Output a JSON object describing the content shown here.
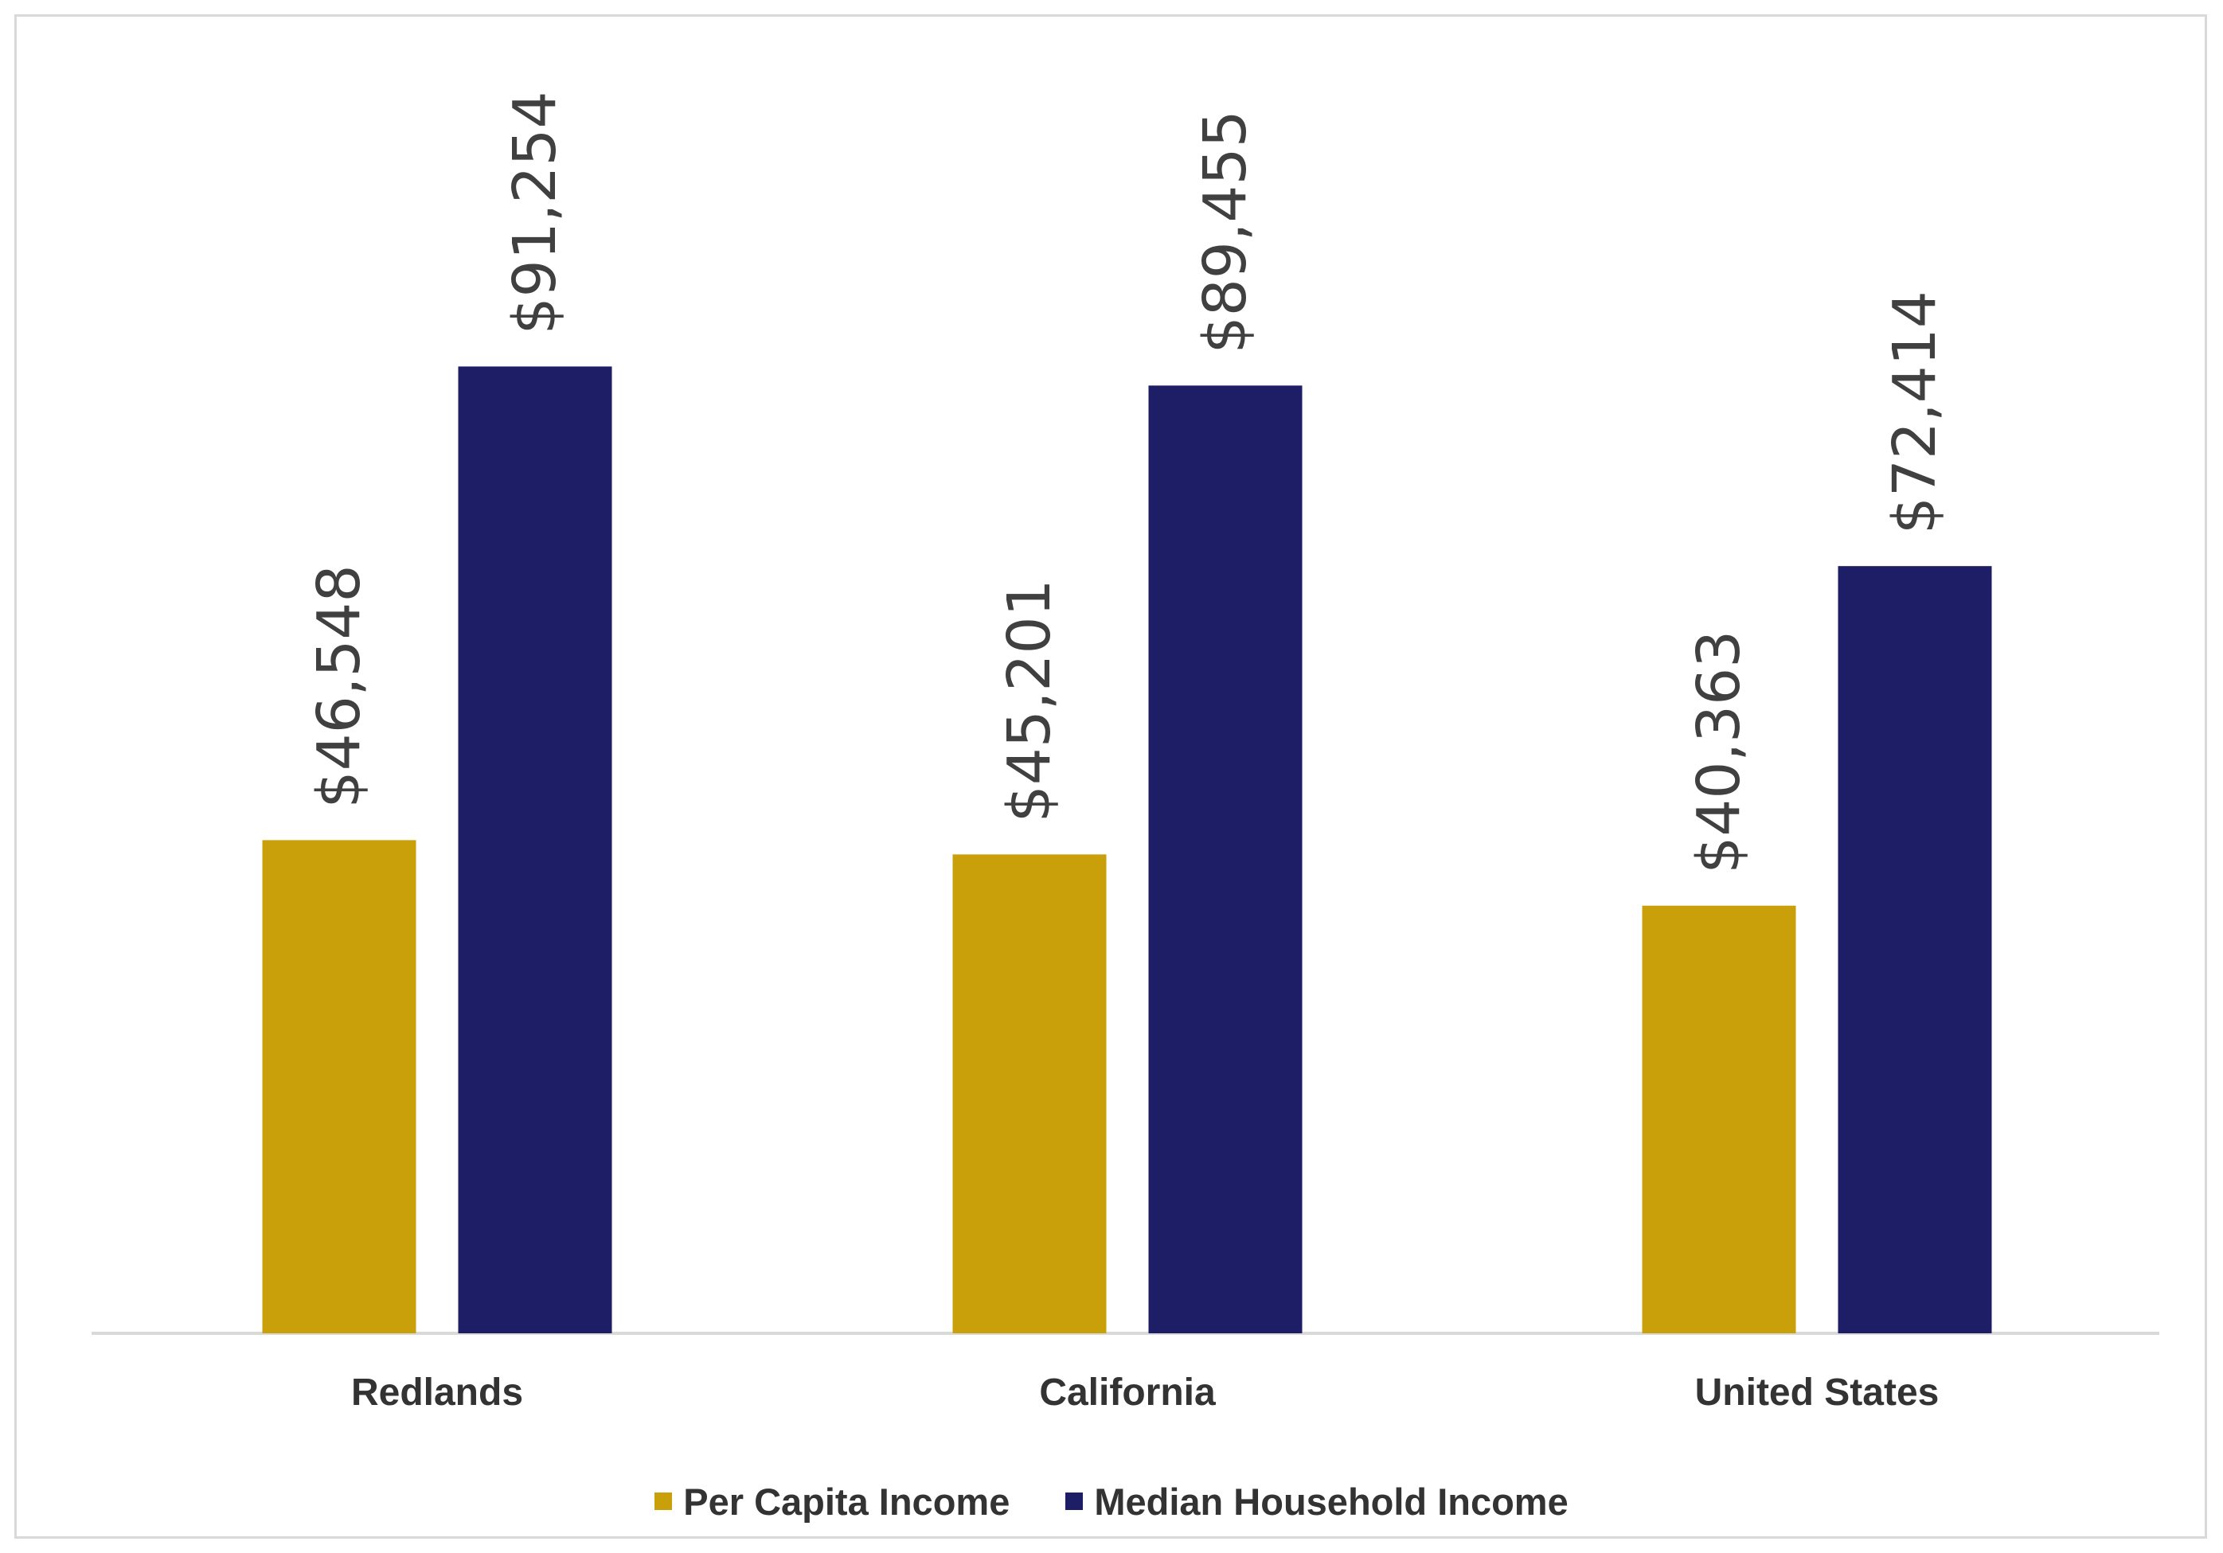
{
  "chart_data": {
    "type": "bar",
    "categories": [
      "Redlands",
      "California",
      "United States"
    ],
    "series": [
      {
        "name": "Per Capita Income",
        "values": [
          46548,
          45201,
          40363
        ],
        "labels": [
          "$46,548",
          "$45,201",
          "$40,363"
        ],
        "color": "#c9a009"
      },
      {
        "name": "Median Household Income",
        "values": [
          91254,
          89455,
          72414
        ],
        "labels": [
          "$91,254",
          "$89,455",
          "$72,414"
        ],
        "color": "#1e1e66"
      }
    ],
    "ylim": [
      0,
      100000
    ],
    "grid": false,
    "legend_position": "bottom",
    "colors": {
      "axis": "#d9d9d9",
      "label": "#404040"
    }
  }
}
